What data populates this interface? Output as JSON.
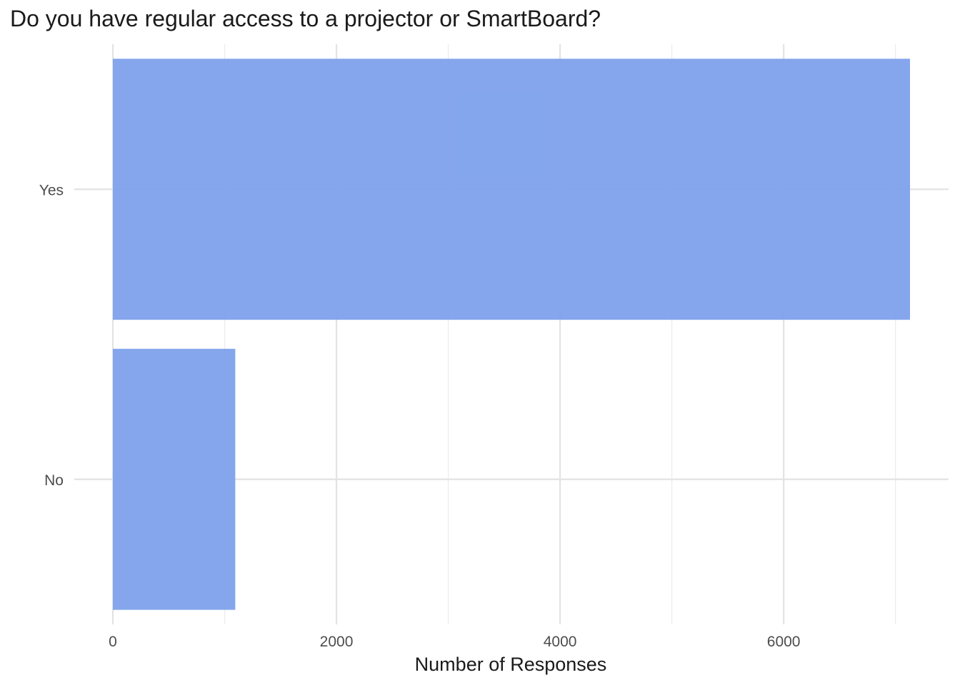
{
  "chart_data": {
    "type": "bar",
    "orientation": "horizontal",
    "title": "Do you have regular access to a projector or SmartBoard?",
    "xlabel": "Number of Responses",
    "ylabel": "",
    "categories": [
      "Yes",
      "No"
    ],
    "values": [
      7130,
      1095
    ],
    "xlim": [
      0,
      7130
    ],
    "x_ticks": [
      0,
      2000,
      4000,
      6000
    ],
    "x_minor_ticks": [
      1000,
      3000,
      5000,
      7000
    ],
    "grid": true,
    "bar_color": "#7ea1ec"
  }
}
